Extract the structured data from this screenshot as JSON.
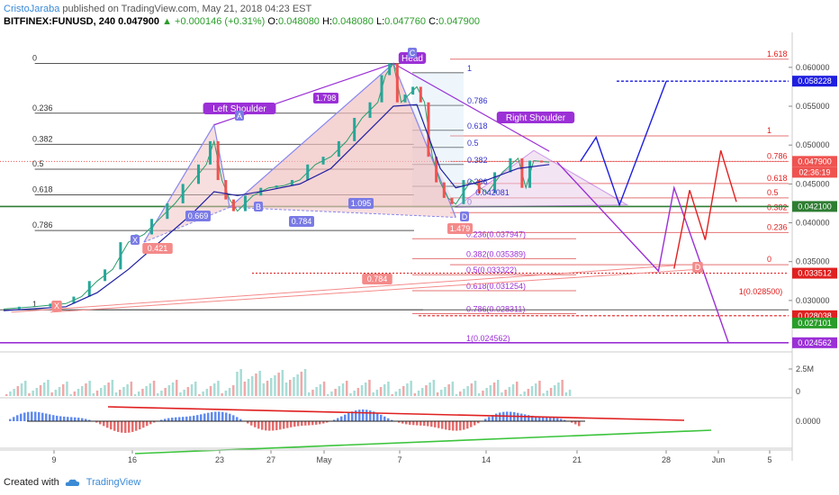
{
  "header": {
    "author": "CristoJaraba",
    "published": "published on TradingView.com, May 21, 2018 04:23 EST"
  },
  "ohlc": {
    "symbol": "BITFINEX:FUNUSD, 240",
    "price": "0.047900",
    "change": "+0.000146 (+0.31%)",
    "o_label": "O:",
    "o": "0.048080",
    "h_label": "H:",
    "h": "0.048080",
    "l_label": "L:",
    "l": "0.047760",
    "c_label": "C:",
    "c": "0.047900"
  },
  "footer": {
    "created_with": "Created with",
    "brand": "TradingView"
  },
  "colors": {
    "up": "#26a69a",
    "down": "#ef5350",
    "purple": "#9b30d6",
    "blue": "#1e1ee0",
    "red": "#e02020",
    "green": "#3cc43c",
    "pattern_fill": "#f2c0c0"
  },
  "chart_data": {
    "type": "line",
    "title": "",
    "price_axis": {
      "ylim": [
        0.0235,
        0.0645
      ],
      "ticks": [
        "0.060000",
        "0.055000",
        "0.050000",
        "0.045000",
        "0.040000",
        "0.035000",
        "0.030000"
      ],
      "tick_values": [
        0.06,
        0.055,
        0.05,
        0.045,
        0.04,
        0.035,
        0.03
      ],
      "badges": [
        {
          "text": "0.058228",
          "value": 0.058228,
          "color": "#1e1ee0"
        },
        {
          "text": "0.047900",
          "value": 0.0479,
          "color": "#ef5350"
        },
        {
          "text": "02:36:19",
          "value": 0.0465,
          "color": "#ef5350"
        },
        {
          "text": "0.042100",
          "value": 0.0421,
          "color": "#2e7d32"
        },
        {
          "text": "0.033512",
          "value": 0.033512,
          "color": "#e02020"
        },
        {
          "text": "0.028038",
          "value": 0.028038,
          "color": "#e02020"
        },
        {
          "text": "0.027101",
          "value": 0.027101,
          "color": "#2a9d2a"
        },
        {
          "text": "0.024562",
          "value": 0.024562,
          "color": "#9b30d6"
        }
      ]
    },
    "x_axis": {
      "ticks": [
        "9",
        "16",
        "23",
        "27",
        "May",
        "7",
        "14",
        "21",
        "28",
        "Jun",
        "5"
      ]
    },
    "price_path": [
      [
        0,
        0.0289
      ],
      [
        4,
        0.0292
      ],
      [
        8,
        0.0296
      ],
      [
        10,
        0.0305
      ],
      [
        12,
        0.0325
      ],
      [
        14,
        0.034
      ],
      [
        16,
        0.0375
      ],
      [
        18,
        0.0385
      ],
      [
        20,
        0.0405
      ],
      [
        22,
        0.0425
      ],
      [
        24,
        0.045
      ],
      [
        26,
        0.0475
      ],
      [
        27,
        0.0505
      ],
      [
        28,
        0.0455
      ],
      [
        29,
        0.043
      ],
      [
        30,
        0.0415
      ],
      [
        32,
        0.0435
      ],
      [
        34,
        0.0445
      ],
      [
        36,
        0.0448
      ],
      [
        38,
        0.0455
      ],
      [
        40,
        0.0475
      ],
      [
        42,
        0.0485
      ],
      [
        44,
        0.0505
      ],
      [
        46,
        0.0535
      ],
      [
        48,
        0.0555
      ],
      [
        49,
        0.059
      ],
      [
        50,
        0.0605
      ],
      [
        51,
        0.0555
      ],
      [
        52,
        0.0565
      ],
      [
        53,
        0.0575
      ],
      [
        54,
        0.0555
      ],
      [
        55,
        0.0485
      ],
      [
        56,
        0.0452
      ],
      [
        57,
        0.0432
      ],
      [
        58,
        0.0424
      ],
      [
        60,
        0.0455
      ],
      [
        62,
        0.0438
      ],
      [
        64,
        0.0465
      ],
      [
        66,
        0.0483
      ],
      [
        67,
        0.0445
      ],
      [
        68,
        0.048
      ],
      [
        70,
        0.0478
      ]
    ],
    "ema_path": [
      [
        0,
        0.0287
      ],
      [
        8,
        0.0292
      ],
      [
        12,
        0.031
      ],
      [
        16,
        0.034
      ],
      [
        20,
        0.0375
      ],
      [
        24,
        0.041
      ],
      [
        27,
        0.044
      ],
      [
        30,
        0.0435
      ],
      [
        34,
        0.0442
      ],
      [
        38,
        0.045
      ],
      [
        42,
        0.047
      ],
      [
        46,
        0.051
      ],
      [
        50,
        0.055
      ],
      [
        53,
        0.0552
      ],
      [
        56,
        0.047
      ],
      [
        58,
        0.0445
      ],
      [
        62,
        0.0455
      ],
      [
        66,
        0.047
      ],
      [
        70,
        0.0475
      ]
    ],
    "fib_left": {
      "levels": [
        "0",
        "0.236",
        "0.382",
        "0.5",
        "0.618",
        "0.786",
        "1"
      ],
      "values": [
        0.0605,
        0.0541,
        0.0501,
        0.0469,
        0.0436,
        0.039,
        0.0288
      ]
    },
    "fib_right": {
      "levels": [
        "1.618",
        "1",
        "0.786",
        "0.618",
        "0.5",
        "0.382",
        "0.236",
        "0"
      ],
      "values": [
        0.06105,
        0.05118,
        0.0479,
        0.04505,
        0.0432,
        0.0413,
        0.03875,
        0.0346
      ]
    },
    "fib_down": {
      "levels": [
        "1",
        "0.786",
        "0.618",
        "0.5",
        "0.382",
        "0.236",
        "0",
        "0.236(0.037947)",
        "0.382(0.035389)",
        "0.5(0.033322)",
        "0.618(0.031254)",
        "0.786(0.028311)",
        "1(0.024562)"
      ],
      "values": [
        0.0593,
        0.0551,
        0.0519,
        0.0497,
        0.0475,
        0.0447,
        0.04208,
        0.037947,
        0.035389,
        0.033322,
        0.031254,
        0.028311,
        0.024562
      ]
    },
    "harmonic_pattern": {
      "points": [
        {
          "label": "X",
          "x": 18,
          "y": 0.0375
        },
        {
          "label": "A",
          "x": 27,
          "y": 0.0526
        },
        {
          "label": "B",
          "x": 29,
          "y": 0.042
        },
        {
          "label": "C",
          "x": 50,
          "y": 0.0605
        },
        {
          "label": "D",
          "x": 58,
          "y": 0.0407
        }
      ],
      "ratios": [
        "0.669",
        "1.798",
        "0.784",
        "1.095",
        "1.479"
      ]
    },
    "pattern_labels": [
      "Left Shoulder",
      "Head",
      "Right Shoulder"
    ],
    "other_labels": [
      "0.421",
      "0.784",
      "X",
      "D",
      "0.042081",
      "1(0.028500)"
    ],
    "projections": {
      "blue": [
        [
          74,
          0.0479
        ],
        [
          76,
          0.051
        ],
        [
          79,
          0.0423
        ],
        [
          85,
          0.058228
        ]
      ],
      "purple": [
        [
          71,
          0.0478
        ],
        [
          84,
          0.0338
        ],
        [
          86,
          0.0445
        ],
        [
          93,
          0.0245
        ]
      ],
      "red": [
        [
          86,
          0.0341
        ],
        [
          88,
          0.0442
        ],
        [
          90,
          0.0378
        ],
        [
          92,
          0.0493
        ],
        [
          94,
          0.0427
        ]
      ]
    },
    "volume_axis": {
      "ticks": [
        "2.5M",
        "0"
      ],
      "tick_values": [
        2.5,
        0
      ]
    },
    "oscillator_axis": {
      "ticks": [
        "0.0000"
      ],
      "tick_values": [
        0
      ]
    }
  }
}
